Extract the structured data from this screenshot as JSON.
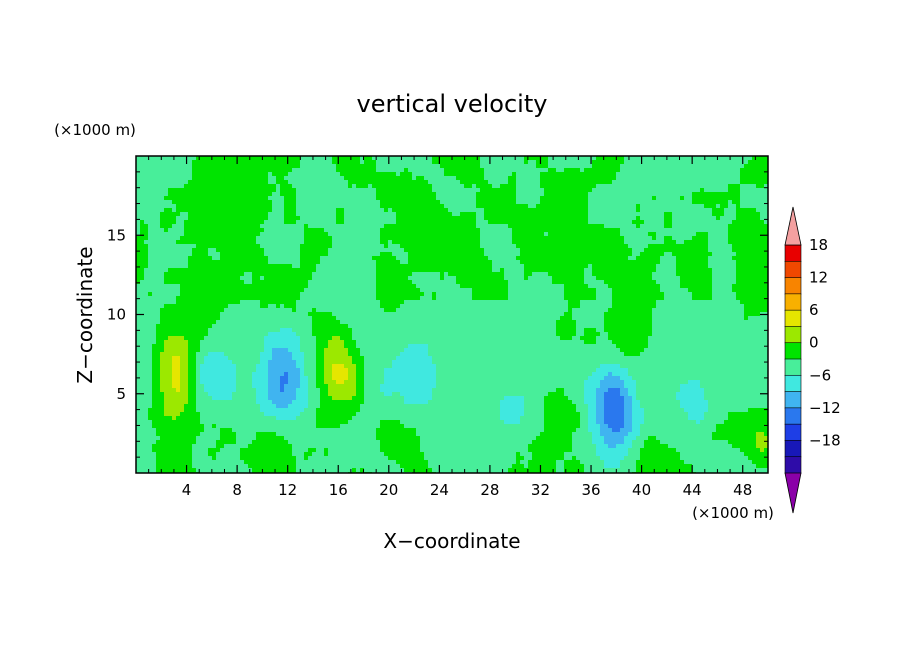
{
  "chart_data": {
    "type": "heatmap",
    "title": "vertical velocity",
    "xlabel": "X−coordinate",
    "ylabel": "Z−coordinate",
    "x_unit": "(×1000 m)",
    "y_unit": "(×1000 m)",
    "xlim": [
      0,
      50
    ],
    "ylim": [
      0,
      20
    ],
    "x_ticks": [
      4,
      8,
      12,
      16,
      20,
      24,
      28,
      32,
      36,
      40,
      44,
      48
    ],
    "y_ticks": [
      5,
      10,
      15
    ],
    "colorbar": {
      "levels": [
        -21,
        -18,
        -15,
        -12,
        -9,
        -6,
        -3,
        0,
        3,
        6,
        9,
        12,
        15,
        18,
        21
      ],
      "tick_labels": [
        18,
        12,
        6,
        0,
        -6,
        -12,
        -18
      ],
      "colors": [
        "#8a00a8",
        "#2e0ca8",
        "#1818b8",
        "#1e3ee6",
        "#2a78ee",
        "#40b4f0",
        "#40e8e0",
        "#48ee9a",
        "#00e400",
        "#9ce800",
        "#e6e600",
        "#f8b000",
        "#f88400",
        "#f04800",
        "#e80000",
        "#f4a0a0"
      ],
      "extend": "both"
    },
    "features": [
      {
        "x": 3.2,
        "z": 6.0,
        "w": 8.2
      },
      {
        "x": 16.0,
        "z": 6.5,
        "w": 7.5
      },
      {
        "x": 10.8,
        "z": 1.5,
        "w": 3.2
      },
      {
        "x": 21.5,
        "z": 1.6,
        "w": 2.6
      },
      {
        "x": 37.8,
        "z": 3.8,
        "w": -10.5
      },
      {
        "x": 11.6,
        "z": 6.0,
        "w": -7.0
      },
      {
        "x": 6.0,
        "z": 6.5,
        "w": -3.5
      },
      {
        "x": 22.0,
        "z": 6.0,
        "w": -3.5
      },
      {
        "x": 30.0,
        "z": 4.0,
        "w": -2.5
      },
      {
        "x": 44.5,
        "z": 4.5,
        "w": -3.2
      },
      {
        "x": 39.0,
        "z": 9.0,
        "w": 3.0
      },
      {
        "x": 49.5,
        "z": 2.0,
        "w": 4.0
      },
      {
        "x": 40.5,
        "z": 1.5,
        "w": 3.0
      },
      {
        "x": 44.0,
        "z": 12.5,
        "w": 2.5
      },
      {
        "x": 33.5,
        "z": 4.5,
        "w": 3.0
      }
    ]
  }
}
